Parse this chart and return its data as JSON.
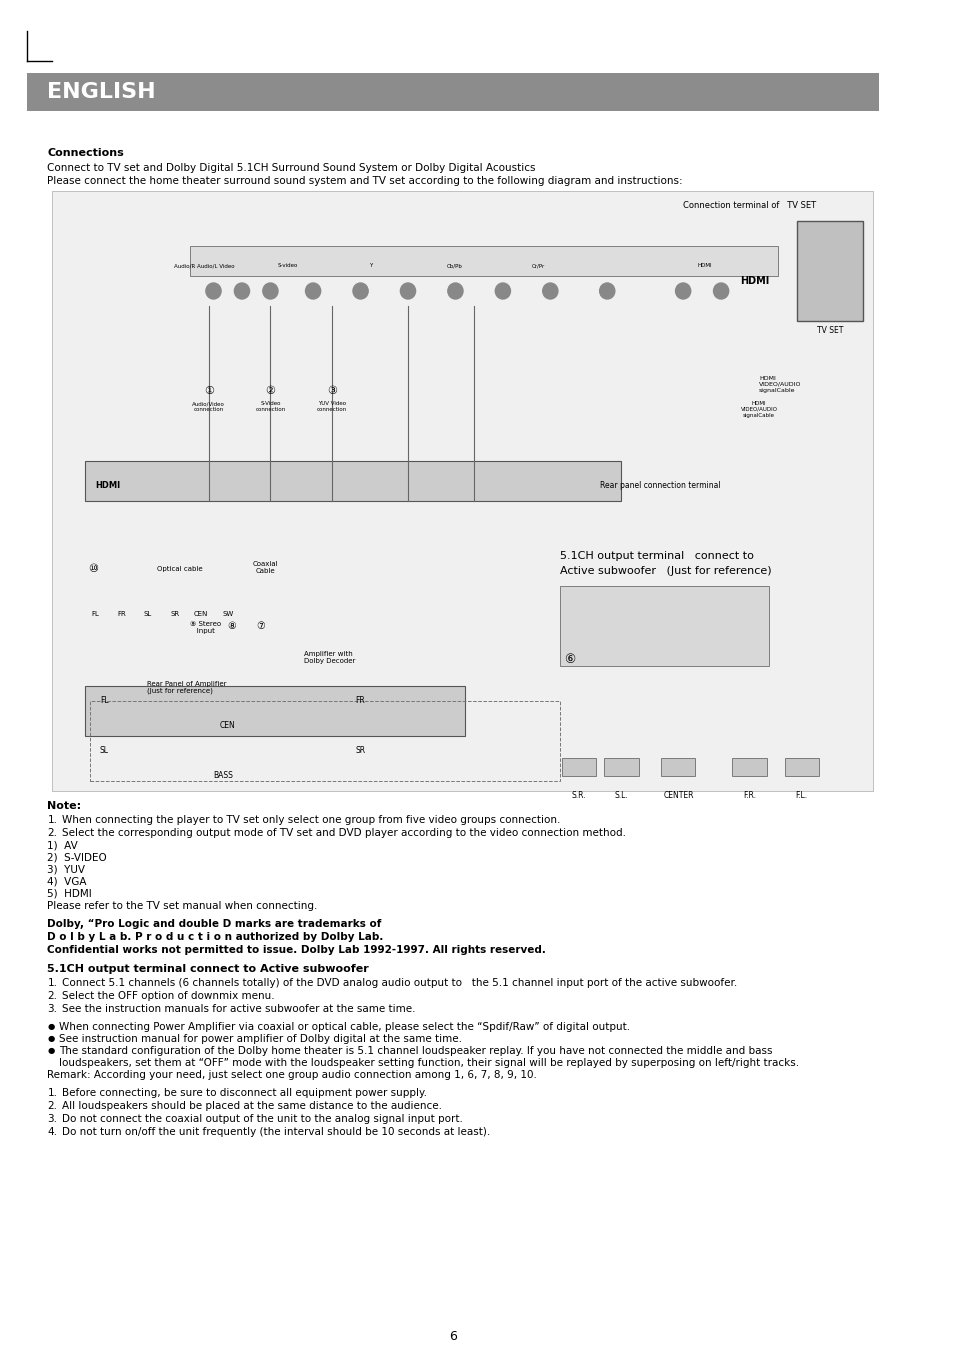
{
  "bg_color": "#ffffff",
  "header_bg": "#8c8c8c",
  "header_text": "ENGLISH",
  "header_text_color": "#ffffff",
  "page_number": "6",
  "sections": [
    {
      "type": "bold",
      "text": "Connections"
    },
    {
      "type": "normal",
      "text": "Connect to TV set and Dolby Digital 5.1CH Surround Sound System or Dolby Digital Acoustics"
    },
    {
      "type": "normal",
      "text": "Please connect the home theater surround sound system and TV set according to the following diagram and instructions:"
    },
    {
      "type": "diagram_placeholder",
      "text": "[Connection Diagram]"
    },
    {
      "type": "bold",
      "text": "Note:"
    },
    {
      "type": "numbered",
      "items": [
        "When connecting the player to TV set only select one group from five video groups connection.",
        "Select the corresponding output mode of TV set and DVD player according to the video connection method."
      ]
    },
    {
      "type": "simple_list",
      "items": [
        "1)  AV",
        "2)  S-VIDEO",
        "3)  YUV",
        "4)  VGA",
        "5)  HDMI"
      ]
    },
    {
      "type": "normal",
      "text": "Please refer to the TV set manual when connecting."
    },
    {
      "type": "bold_block",
      "lines": [
        "Dolby, “Pro Logic and double D marks are trademarks of",
        "D o l b y L a b. P r o d u c t i o n authorized by Dolby Lab.",
        "Confidential works not permitted to issue. Dolby Lab 1992-1997. All rights reserved."
      ]
    },
    {
      "type": "bold",
      "text": "5.1CH output terminal connect to Active subwoofer"
    },
    {
      "type": "numbered",
      "items": [
        "Connect 5.1 channels (6 channels totally) of the DVD analog audio output to   the 5.1 channel input port of the active subwoofer.",
        "Select the OFF option of downmix menu.",
        "See the instruction manuals for active subwoofer at the same time."
      ]
    },
    {
      "type": "bullet_list",
      "items": [
        "When connecting Power Amplifier via coaxial or optical cable, please select the “Spdif/Raw” of digital output.",
        "See instruction manual for power amplifier of Dolby digital at the same time.",
        "The standard configuration of the Dolby home theater is 5.1 channel loudspeaker replay. If you have not connected the middle and bass\n      loudspeakers, set them at “OFF” mode with the loudspeaker setting function, their signal will be replayed by superposing on left/right tracks."
      ]
    },
    {
      "type": "normal",
      "text": "Remark: According your need, just select one group audio connection among 1, 6, 7, 8, 9, 10."
    },
    {
      "type": "numbered",
      "items": [
        "Before connecting, be sure to disconnect all equipment power supply.",
        "All loudspeakers should be placed at the same distance to the audience.",
        "Do not connect the coaxial output of the unit to the analog signal input port.",
        "Do not turn on/off the unit frequently (the interval should be 10 seconds at least)."
      ]
    }
  ]
}
